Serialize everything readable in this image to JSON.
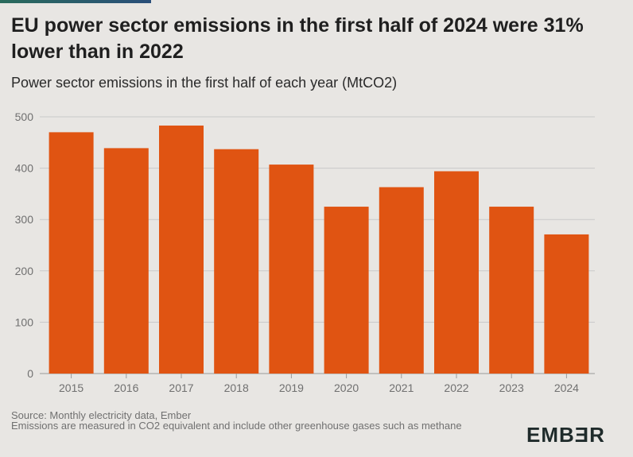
{
  "header": {
    "title": "EU power sector emissions in the first half of 2024 were 31% lower than in 2022",
    "subtitle": "Power sector emissions in the first half of each year (MtCO2)"
  },
  "footer": {
    "source": "Source: Monthly electricity data, Ember",
    "note": "Emissions are measured in CO2 equivalent and include other greenhouse gases such as methane"
  },
  "logo": {
    "text": "EMBƎR"
  },
  "colors": {
    "bar": "#e05412",
    "grid": "#c9c9c9",
    "background": "#e8e6e3",
    "tick_text": "#707070"
  },
  "chart_data": {
    "type": "bar",
    "categories": [
      "2015",
      "2016",
      "2017",
      "2018",
      "2019",
      "2020",
      "2021",
      "2022",
      "2023",
      "2024"
    ],
    "values": [
      470,
      439,
      483,
      437,
      407,
      325,
      363,
      394,
      325,
      271
    ],
    "ylim": [
      0,
      500
    ],
    "yticks": [
      0,
      100,
      200,
      300,
      400,
      500
    ],
    "title": "Power sector emissions in the first half of each year (MtCO2)",
    "xlabel": "",
    "ylabel": "",
    "grid": true,
    "legend": "none"
  }
}
